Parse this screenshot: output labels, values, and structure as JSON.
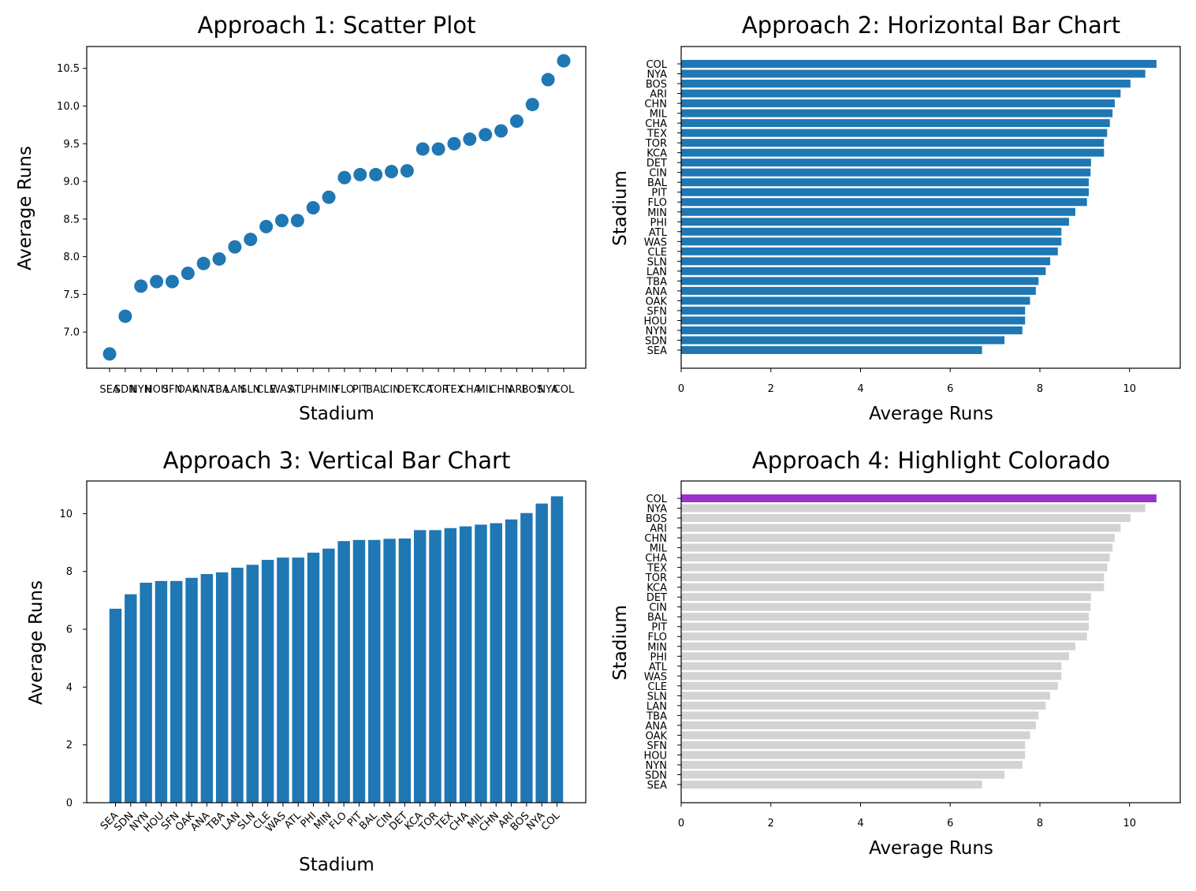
{
  "colors": {
    "bar": "#1f77b4",
    "highlight": "#9932cc",
    "muted": "#d3d3d3"
  },
  "stadiums": [
    "SEA",
    "SDN",
    "NYN",
    "HOU",
    "SFN",
    "OAK",
    "ANA",
    "TBA",
    "LAN",
    "SLN",
    "CLE",
    "WAS",
    "ATL",
    "PHI",
    "MIN",
    "FLO",
    "PIT",
    "BAL",
    "CIN",
    "DET",
    "KCA",
    "TOR",
    "TEX",
    "CHA",
    "MIL",
    "CHN",
    "ARI",
    "BOS",
    "NYA",
    "COL"
  ],
  "chart_data": [
    {
      "type": "scatter",
      "title": "Approach 1: Scatter Plot",
      "xlabel": "Stadium",
      "ylabel": "Average Runs",
      "categories": [
        "SEA",
        "SDN",
        "NYN",
        "HOU",
        "SFN",
        "OAK",
        "ANA",
        "TBA",
        "LAN",
        "SLN",
        "CLE",
        "WAS",
        "ATL",
        "PHI",
        "MIN",
        "FLO",
        "PIT",
        "BAL",
        "CIN",
        "DET",
        "KCA",
        "TOR",
        "TEX",
        "CHA",
        "MIL",
        "CHN",
        "ARI",
        "BOS",
        "NYA",
        "COL"
      ],
      "values": [
        6.71,
        7.21,
        7.61,
        7.67,
        7.67,
        7.78,
        7.91,
        7.97,
        8.13,
        8.23,
        8.4,
        8.48,
        8.48,
        8.65,
        8.79,
        9.05,
        9.09,
        9.09,
        9.13,
        9.14,
        9.43,
        9.43,
        9.5,
        9.56,
        9.62,
        9.67,
        9.8,
        10.02,
        10.35,
        10.6
      ],
      "yticks": [
        7.0,
        7.5,
        8.0,
        8.5,
        9.0,
        9.5,
        10.0,
        10.5
      ],
      "ylim": [
        6.52,
        10.79
      ],
      "grid": false
    },
    {
      "type": "bar",
      "orientation": "horizontal",
      "title": "Approach 2: Horizontal Bar Chart",
      "xlabel": "Average Runs",
      "ylabel": "Stadium",
      "categories": [
        "SEA",
        "SDN",
        "NYN",
        "HOU",
        "SFN",
        "OAK",
        "ANA",
        "TBA",
        "LAN",
        "SLN",
        "CLE",
        "WAS",
        "ATL",
        "PHI",
        "MIN",
        "FLO",
        "PIT",
        "BAL",
        "CIN",
        "DET",
        "KCA",
        "TOR",
        "TEX",
        "CHA",
        "MIL",
        "CHN",
        "ARI",
        "BOS",
        "NYA",
        "COL"
      ],
      "values": [
        6.71,
        7.21,
        7.61,
        7.67,
        7.67,
        7.78,
        7.91,
        7.97,
        8.13,
        8.23,
        8.4,
        8.48,
        8.48,
        8.65,
        8.79,
        9.05,
        9.09,
        9.09,
        9.13,
        9.14,
        9.43,
        9.43,
        9.5,
        9.56,
        9.62,
        9.67,
        9.8,
        10.02,
        10.35,
        10.6
      ],
      "xticks": [
        0,
        2,
        4,
        6,
        8,
        10
      ],
      "xlim": [
        0,
        11.13
      ],
      "grid": false
    },
    {
      "type": "bar",
      "orientation": "vertical",
      "title": "Approach 3: Vertical Bar Chart",
      "xlabel": "Stadium",
      "ylabel": "Average Runs",
      "categories": [
        "SEA",
        "SDN",
        "NYN",
        "HOU",
        "SFN",
        "OAK",
        "ANA",
        "TBA",
        "LAN",
        "SLN",
        "CLE",
        "WAS",
        "ATL",
        "PHI",
        "MIN",
        "FLO",
        "PIT",
        "BAL",
        "CIN",
        "DET",
        "KCA",
        "TOR",
        "TEX",
        "CHA",
        "MIL",
        "CHN",
        "ARI",
        "BOS",
        "NYA",
        "COL"
      ],
      "values": [
        6.71,
        7.21,
        7.61,
        7.67,
        7.67,
        7.78,
        7.91,
        7.97,
        8.13,
        8.23,
        8.4,
        8.48,
        8.48,
        8.65,
        8.79,
        9.05,
        9.09,
        9.09,
        9.13,
        9.14,
        9.43,
        9.43,
        9.5,
        9.56,
        9.62,
        9.67,
        9.8,
        10.02,
        10.35,
        10.6
      ],
      "yticks": [
        0,
        2,
        4,
        6,
        8,
        10
      ],
      "ylim": [
        0,
        11.13
      ],
      "xtick_rotation": 45,
      "grid": false
    },
    {
      "type": "bar",
      "orientation": "horizontal",
      "title": "Approach 4: Highlight Colorado",
      "xlabel": "Average Runs",
      "ylabel": "Stadium",
      "categories": [
        "SEA",
        "SDN",
        "NYN",
        "HOU",
        "SFN",
        "OAK",
        "ANA",
        "TBA",
        "LAN",
        "SLN",
        "CLE",
        "WAS",
        "ATL",
        "PHI",
        "MIN",
        "FLO",
        "PIT",
        "BAL",
        "CIN",
        "DET",
        "KCA",
        "TOR",
        "TEX",
        "CHA",
        "MIL",
        "CHN",
        "ARI",
        "BOS",
        "NYA",
        "COL"
      ],
      "values": [
        6.71,
        7.21,
        7.61,
        7.67,
        7.67,
        7.78,
        7.91,
        7.97,
        8.13,
        8.23,
        8.4,
        8.48,
        8.48,
        8.65,
        8.79,
        9.05,
        9.09,
        9.09,
        9.13,
        9.14,
        9.43,
        9.43,
        9.5,
        9.56,
        9.62,
        9.67,
        9.8,
        10.02,
        10.35,
        10.6
      ],
      "highlight": "COL",
      "xticks": [
        0,
        2,
        4,
        6,
        8,
        10
      ],
      "xlim": [
        0,
        11.13
      ],
      "grid": false
    }
  ]
}
